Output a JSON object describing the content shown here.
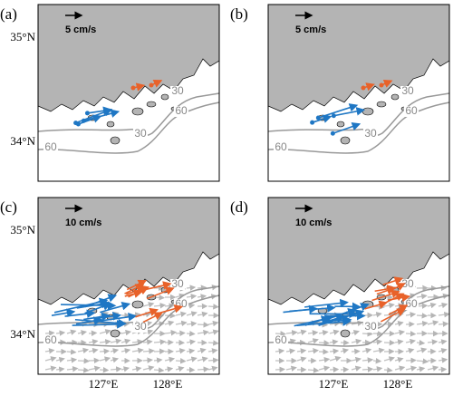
{
  "panels": [
    {
      "label": "(a)",
      "scale": "5 cm/s",
      "contours": [
        "30",
        "30",
        "60",
        "60"
      ]
    },
    {
      "label": "(b)",
      "scale": "5 cm/s",
      "contours": [
        "30",
        "30",
        "60",
        "60"
      ]
    },
    {
      "label": "(c)",
      "scale": "10 cm/s",
      "contours": [
        "30",
        "30",
        "60",
        "60"
      ]
    },
    {
      "label": "(d)",
      "scale": "10 cm/s",
      "contours": [
        "30",
        "30",
        "60",
        "60"
      ]
    }
  ],
  "y_axis": [
    "35°N",
    "34°N"
  ],
  "x_axis": [
    "127°E",
    "128°E"
  ]
}
